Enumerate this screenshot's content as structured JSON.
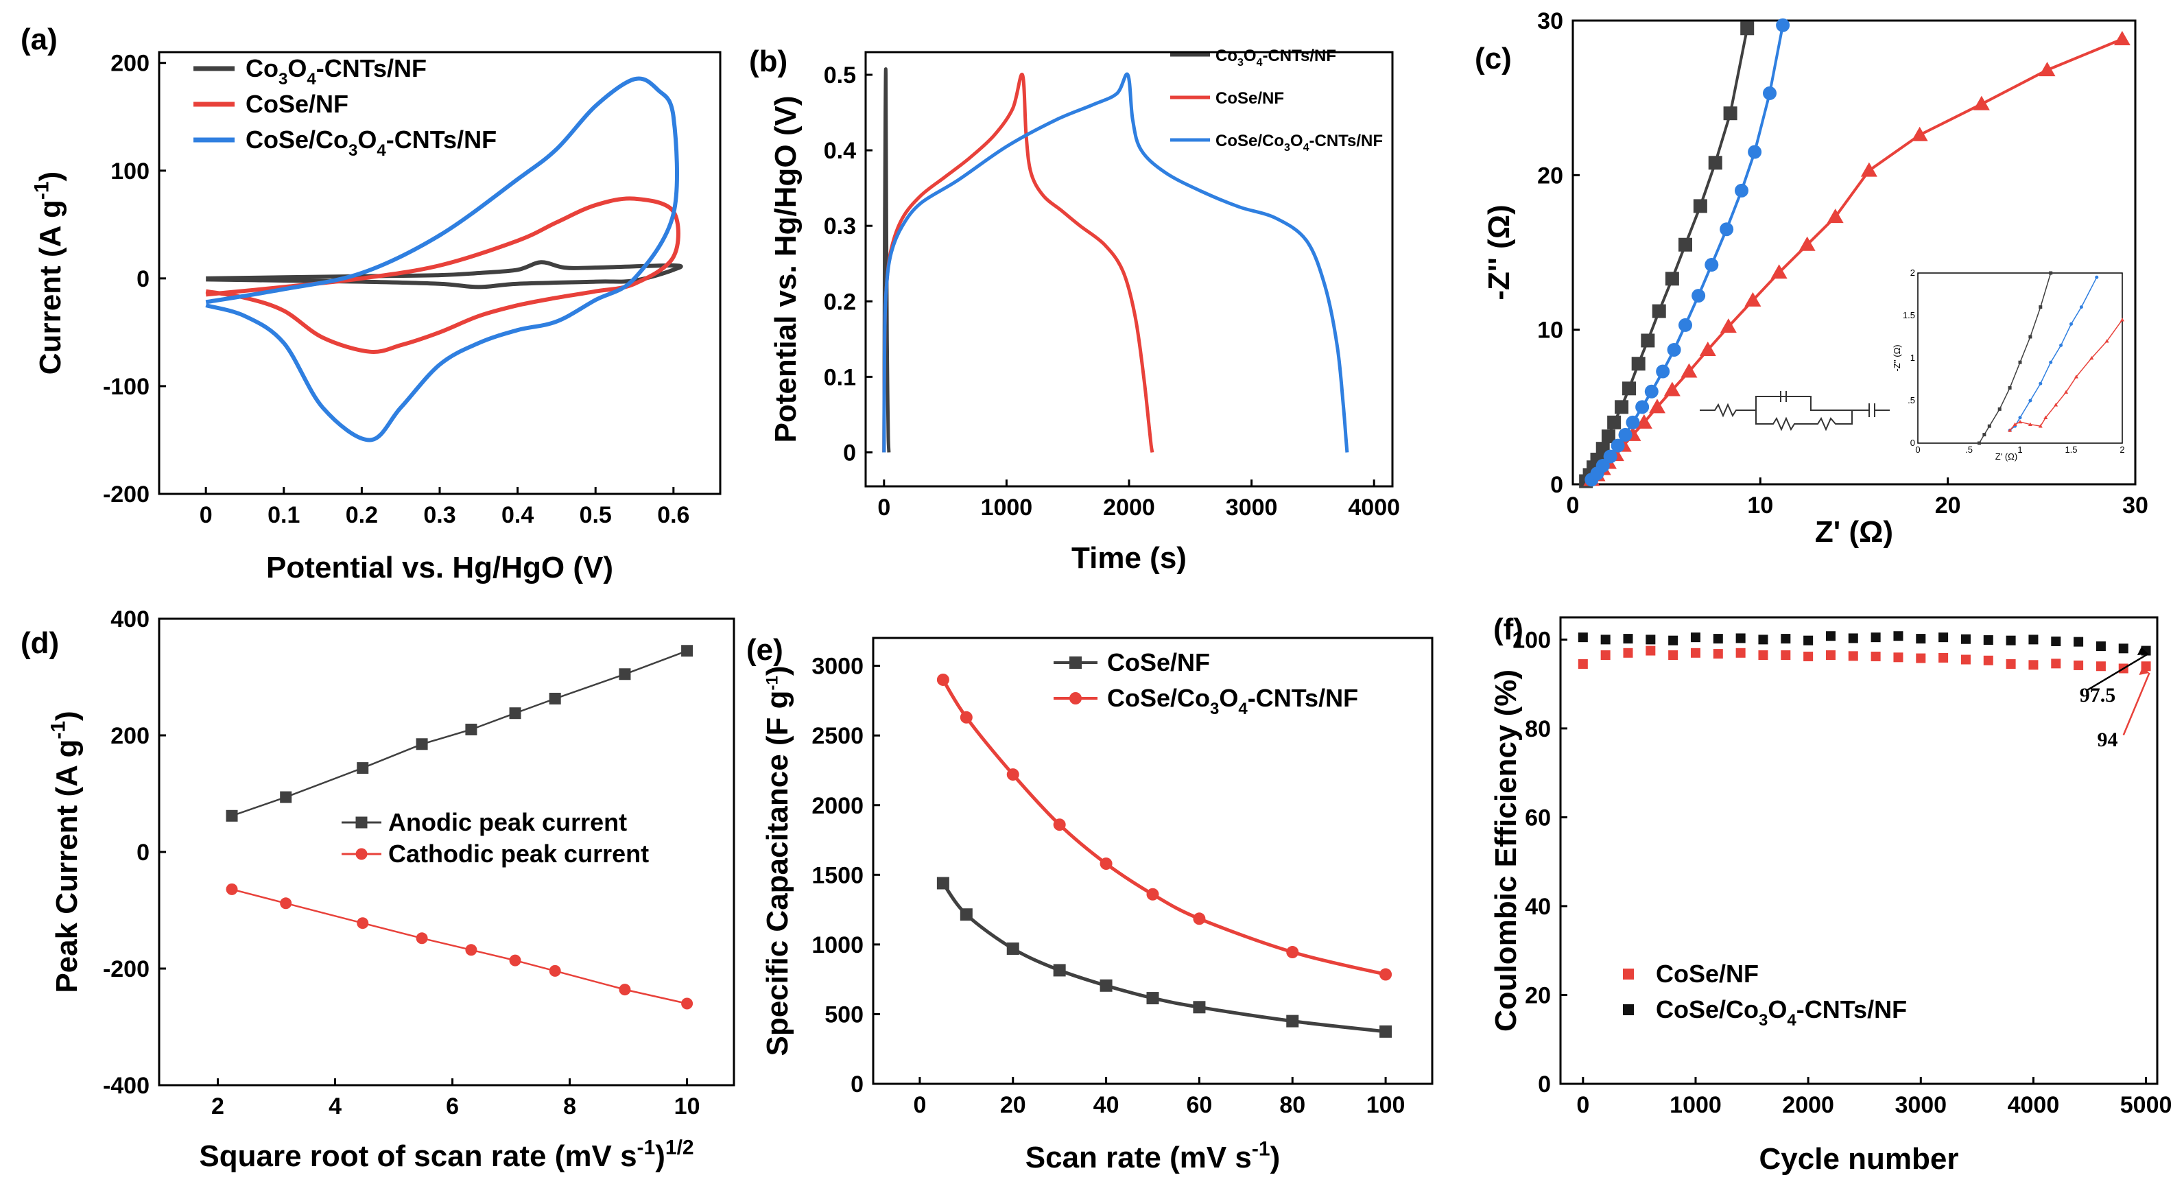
{
  "chart_data": [
    {
      "id": "a",
      "panel_label": "(a)",
      "type": "line",
      "title": "",
      "xlabel": "Potential vs. Hg/HgO (V)",
      "ylabel": "Current (A g-1)",
      "xlim": [
        -0.06,
        0.66
      ],
      "ylim": [
        -200,
        210
      ],
      "xticks": [
        0,
        0.1,
        0.2,
        0.3,
        0.4,
        0.5,
        0.6
      ],
      "xtick_labels": [
        "0",
        "0.1",
        "0.2",
        "0.3",
        "0.4",
        "0.5",
        "0.6"
      ],
      "yticks": [
        -200,
        -100,
        0,
        100,
        200
      ],
      "ytick_labels": [
        "-200",
        "-100",
        "0",
        "100",
        "200"
      ],
      "legend_position": "top-left",
      "series": [
        {
          "name": "Co3O4-CNTs/NF",
          "color": "#404040",
          "x": [
            0,
            0.1,
            0.2,
            0.3,
            0.35,
            0.4,
            0.43,
            0.46,
            0.5,
            0.6,
            0.6,
            0.55,
            0.5,
            0.4,
            0.35,
            0.3,
            0.2,
            0.1,
            0
          ],
          "y": [
            0,
            1,
            2,
            3,
            5,
            8,
            15,
            10,
            10,
            12,
            8,
            -2,
            -3,
            -5,
            -8,
            -5,
            -3,
            -2,
            -1
          ]
        },
        {
          "name": "CoSe/NF",
          "color": "#e8413a",
          "x": [
            0,
            0.1,
            0.2,
            0.3,
            0.4,
            0.45,
            0.5,
            0.55,
            0.6,
            0.6,
            0.55,
            0.5,
            0.45,
            0.4,
            0.35,
            0.3,
            0.25,
            0.21,
            0.15,
            0.1,
            0.05,
            0
          ],
          "y": [
            -15,
            -8,
            0,
            12,
            35,
            52,
            68,
            74,
            62,
            20,
            -5,
            -12,
            -18,
            -25,
            -35,
            -50,
            -62,
            -68,
            -55,
            -30,
            -18,
            -12
          ]
        },
        {
          "name": "CoSe/Co3O4-CNTs/NF",
          "color": "#2f7fe0",
          "x": [
            0,
            0.1,
            0.2,
            0.3,
            0.4,
            0.45,
            0.5,
            0.55,
            0.58,
            0.6,
            0.6,
            0.55,
            0.5,
            0.45,
            0.4,
            0.35,
            0.3,
            0.25,
            0.21,
            0.15,
            0.1,
            0.05,
            0
          ],
          "y": [
            -22,
            -10,
            5,
            40,
            92,
            120,
            160,
            185,
            175,
            150,
            60,
            0,
            -20,
            -40,
            -48,
            -60,
            -80,
            -120,
            -150,
            -120,
            -60,
            -35,
            -25
          ]
        }
      ]
    },
    {
      "id": "b",
      "panel_label": "(b)",
      "type": "line",
      "title": "",
      "xlabel": "Time (s)",
      "ylabel": "Potential vs. Hg/HgO (V)",
      "xlim": [
        -150,
        4150
      ],
      "ylim": [
        -0.045,
        0.53
      ],
      "xticks": [
        0,
        1000,
        2000,
        3000,
        4000
      ],
      "xtick_labels": [
        "0",
        "1000",
        "2000",
        "3000",
        "4000"
      ],
      "yticks": [
        0,
        0.1,
        0.2,
        0.3,
        0.4,
        0.5
      ],
      "ytick_labels": [
        "0",
        "0.1",
        "0.2",
        "0.3",
        "0.4",
        "0.5"
      ],
      "legend_position": "top-right",
      "series": [
        {
          "name": "Co3O4-CNTs/NF",
          "color": "#404040",
          "x": [
            0,
            5,
            10,
            15,
            20,
            25,
            30,
            35,
            40
          ],
          "y": [
            0,
            0.3,
            0.45,
            0.5,
            0.3,
            0.15,
            0.08,
            0.02,
            0
          ]
        },
        {
          "name": "CoSe/NF",
          "color": "#e8413a",
          "x": [
            0,
            5,
            20,
            60,
            150,
            300,
            500,
            700,
            900,
            1050,
            1130,
            1160,
            1200,
            1300,
            1450,
            1600,
            1800,
            1950,
            2050,
            2120,
            2160,
            2180,
            2190
          ],
          "y": [
            0,
            0.15,
            0.22,
            0.27,
            0.31,
            0.34,
            0.365,
            0.39,
            0.42,
            0.455,
            0.5,
            0.42,
            0.37,
            0.34,
            0.32,
            0.3,
            0.275,
            0.24,
            0.18,
            0.1,
            0.04,
            0.01,
            0
          ]
        },
        {
          "name": "CoSe/Co3O4-CNTs/NF",
          "color": "#2f7fe0",
          "x": [
            0,
            5,
            20,
            60,
            150,
            300,
            600,
            1000,
            1400,
            1700,
            1900,
            1990,
            2030,
            2100,
            2300,
            2600,
            2900,
            3200,
            3450,
            3600,
            3700,
            3750,
            3770,
            3780
          ],
          "y": [
            0,
            0.15,
            0.22,
            0.265,
            0.3,
            0.33,
            0.36,
            0.405,
            0.44,
            0.46,
            0.475,
            0.5,
            0.44,
            0.4,
            0.37,
            0.345,
            0.325,
            0.31,
            0.28,
            0.22,
            0.14,
            0.06,
            0.02,
            0
          ]
        }
      ]
    },
    {
      "id": "c",
      "panel_label": "(c)",
      "type": "scatter",
      "title": "",
      "xlabel": "Z' (Ω)",
      "ylabel": "-Z'' (Ω)",
      "xlim": [
        0,
        30
      ],
      "ylim": [
        0,
        30
      ],
      "xticks": [
        0,
        10,
        20,
        30
      ],
      "xtick_labels": [
        "0",
        "10",
        "20",
        "30"
      ],
      "yticks": [
        0,
        10,
        20,
        30
      ],
      "ytick_labels": [
        "0",
        "10",
        "20",
        "30"
      ],
      "series": [
        {
          "name": "Co3O4-CNTs/NF",
          "color": "#404040",
          "marker": "square",
          "x": [
            0.7,
            0.9,
            1.1,
            1.3,
            1.6,
            1.9,
            2.2,
            2.6,
            3.0,
            3.5,
            4.0,
            4.6,
            5.3,
            6.0,
            6.8,
            7.6,
            8.4,
            9.3
          ],
          "y": [
            0.2,
            0.6,
            1.1,
            1.6,
            2.3,
            3.1,
            4.0,
            5.0,
            6.2,
            7.8,
            9.3,
            11.2,
            13.3,
            15.5,
            18.0,
            20.8,
            24.0,
            29.5
          ]
        },
        {
          "name": "CoSe/NF",
          "color": "#e8413a",
          "marker": "triangle",
          "x": [
            1.0,
            1.3,
            1.6,
            1.9,
            2.3,
            2.7,
            3.2,
            3.8,
            4.5,
            5.3,
            6.2,
            7.2,
            8.3,
            9.6,
            11.0,
            12.5,
            14.0,
            15.8,
            18.5,
            21.8,
            25.3,
            29.3
          ],
          "y": [
            0.3,
            0.6,
            1.0,
            1.4,
            1.9,
            2.5,
            3.2,
            4.0,
            5.0,
            6.1,
            7.3,
            8.7,
            10.2,
            11.9,
            13.7,
            15.5,
            17.3,
            20.3,
            22.6,
            24.6,
            26.8,
            28.8
          ]
        },
        {
          "name": "CoSe/Co3O4-CNTs/NF",
          "color": "#2f7fe0",
          "marker": "circle",
          "x": [
            1.0,
            1.3,
            1.6,
            2.0,
            2.4,
            2.8,
            3.2,
            3.7,
            4.2,
            4.8,
            5.4,
            6.0,
            6.7,
            7.4,
            8.2,
            9.0,
            9.7,
            10.5,
            11.2
          ],
          "y": [
            0.3,
            0.7,
            1.2,
            1.8,
            2.5,
            3.2,
            4.0,
            5.0,
            6.0,
            7.3,
            8.7,
            10.3,
            12.2,
            14.2,
            16.5,
            19.0,
            21.5,
            25.3,
            29.7
          ]
        }
      ],
      "inset": {
        "xlabel": "Z' (Ω)",
        "ylabel": "-Z'' (Ω)",
        "xticks": [
          0,
          0.5,
          1,
          1.5,
          2
        ],
        "xtick_labels": [
          "0",
          ".5",
          "1",
          "1.5",
          "2"
        ],
        "yticks": [
          0,
          0.5,
          1,
          1.5,
          2
        ],
        "ytick_labels": [
          "0",
          ".5",
          "1",
          "1.5",
          "2"
        ],
        "circuit_label": "equivalent circuit (Rs, Rct, CPE, W)"
      }
    },
    {
      "id": "d",
      "panel_label": "(d)",
      "type": "line",
      "title": "",
      "xlabel": "Square root of scan rate (mV s-1)1/2",
      "ylabel": "Peak Current (A g-1)",
      "xlim": [
        1.0,
        10.8
      ],
      "ylim": [
        -400,
        400
      ],
      "xticks": [
        2,
        4,
        6,
        8,
        10
      ],
      "xtick_labels": [
        "2",
        "4",
        "6",
        "8",
        "10"
      ],
      "yticks": [
        -400,
        -200,
        0,
        200,
        400
      ],
      "ytick_labels": [
        "-400",
        "-200",
        "0",
        "200",
        "400"
      ],
      "legend_position": "center-right",
      "series": [
        {
          "name": "Anodic peak current",
          "color": "#404040",
          "marker": "square",
          "x": [
            2.24,
            3.16,
            4.47,
            5.48,
            6.32,
            7.07,
            7.75,
            8.94,
            10.0
          ],
          "y": [
            62,
            94,
            144,
            185,
            210,
            238,
            263,
            305,
            345
          ]
        },
        {
          "name": "Cathodic peak current",
          "color": "#e8413a",
          "marker": "circle",
          "x": [
            2.24,
            3.16,
            4.47,
            5.48,
            6.32,
            7.07,
            7.75,
            8.94,
            10.0
          ],
          "y": [
            -64,
            -88,
            -122,
            -148,
            -168,
            -186,
            -204,
            -236,
            -260
          ]
        }
      ]
    },
    {
      "id": "e",
      "panel_label": "(e)",
      "type": "line",
      "title": "",
      "xlabel": "Scan rate (mV s-1)",
      "ylabel": "Specific Capacitance (F g-1)",
      "xlim": [
        -10,
        110
      ],
      "ylim": [
        0,
        3200
      ],
      "xticks": [
        0,
        20,
        40,
        60,
        80,
        100
      ],
      "xtick_labels": [
        "0",
        "20",
        "40",
        "60",
        "80",
        "100"
      ],
      "yticks": [
        0,
        500,
        1000,
        1500,
        2000,
        2500,
        3000
      ],
      "ytick_labels": [
        "0",
        "500",
        "1000",
        "1500",
        "2000",
        "2500",
        "3000"
      ],
      "legend_position": "top-right",
      "series": [
        {
          "name": "CoSe/NF",
          "color": "#404040",
          "marker": "square",
          "x": [
            5,
            10,
            20,
            30,
            40,
            50,
            60,
            80,
            100
          ],
          "y": [
            1440,
            1215,
            970,
            815,
            705,
            615,
            550,
            450,
            375
          ]
        },
        {
          "name": "CoSe/Co3O4-CNTs/NF",
          "color": "#e8413a",
          "marker": "circle",
          "x": [
            5,
            10,
            20,
            30,
            40,
            50,
            60,
            80,
            100
          ],
          "y": [
            2900,
            2630,
            2220,
            1860,
            1580,
            1360,
            1185,
            945,
            785
          ]
        }
      ]
    },
    {
      "id": "f",
      "panel_label": "(f)",
      "type": "scatter",
      "title": "",
      "xlabel": "Cycle number",
      "ylabel": "Coulombic Efficiency (%)",
      "xlim": [
        -200,
        5100
      ],
      "ylim": [
        0,
        105
      ],
      "xticks": [
        0,
        1000,
        2000,
        3000,
        4000,
        5000
      ],
      "xtick_labels": [
        "0",
        "1000",
        "2000",
        "3000",
        "4000",
        "5000"
      ],
      "yticks": [
        0,
        20,
        40,
        60,
        80,
        100
      ],
      "ytick_labels": [
        "0",
        "20",
        "40",
        "60",
        "80",
        "100"
      ],
      "legend_position": "bottom-left",
      "series": [
        {
          "name": "CoSe/NF",
          "color": "#e8413a",
          "marker": "square",
          "x": [
            0,
            200,
            400,
            600,
            800,
            1000,
            1200,
            1400,
            1600,
            1800,
            2000,
            2200,
            2400,
            2600,
            2800,
            3000,
            3200,
            3400,
            3600,
            3800,
            4000,
            4200,
            4400,
            4600,
            4800,
            5000
          ],
          "y": [
            94.5,
            96.5,
            97,
            97.5,
            96.5,
            97,
            96.8,
            97,
            96.5,
            96.5,
            96.2,
            96.5,
            96.3,
            96.2,
            96.0,
            95.8,
            95.9,
            95.5,
            95.3,
            94.5,
            94.3,
            94.6,
            94.2,
            94,
            93.5,
            94
          ]
        },
        {
          "name": "CoSe/Co3O4-CNTs/NF",
          "color": "#111111",
          "marker": "square",
          "x": [
            0,
            200,
            400,
            600,
            800,
            1000,
            1200,
            1400,
            1600,
            1800,
            2000,
            2200,
            2400,
            2600,
            2800,
            3000,
            3200,
            3400,
            3600,
            3800,
            4000,
            4200,
            4400,
            4600,
            4800,
            5000
          ],
          "y": [
            100.5,
            100,
            100.2,
            100,
            99.8,
            100.5,
            100.2,
            100.3,
            100,
            100.2,
            99.8,
            100.8,
            100.3,
            100.5,
            100.8,
            100.2,
            100.5,
            100.1,
            99.9,
            99.8,
            100,
            99.6,
            99.5,
            98.5,
            98,
            97.5
          ]
        }
      ],
      "annotations": [
        {
          "text": "97.5",
          "x": 4730,
          "y": 86
        },
        {
          "text": "94",
          "x": 4750,
          "y": 76
        }
      ]
    }
  ]
}
